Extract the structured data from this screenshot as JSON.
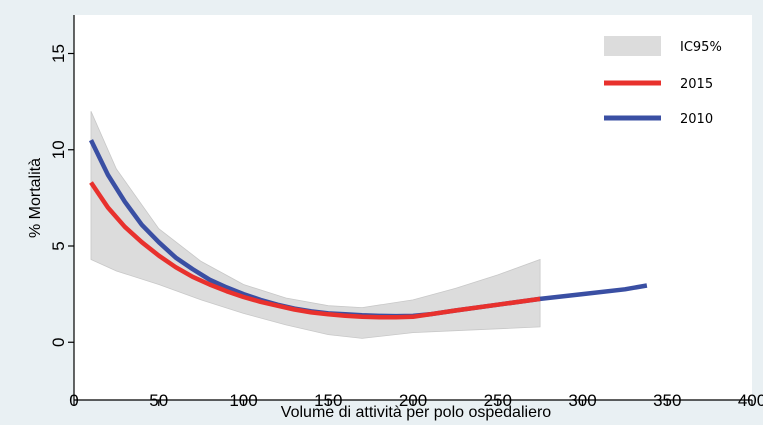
{
  "chart_data": {
    "type": "line",
    "title": "",
    "xlabel": "Volume di attività per polo ospedaliero",
    "ylabel": "% Mortalità",
    "xlim": [
      0,
      400
    ],
    "ylim": [
      -3,
      17
    ],
    "x_ticks": [
      0,
      50,
      100,
      150,
      200,
      250,
      300,
      350,
      400
    ],
    "y_ticks": [
      0,
      5,
      10,
      15
    ],
    "grid": false,
    "legend_position": "top-right",
    "band": {
      "name": "IC95%",
      "color": "#dcdcdc",
      "x": [
        10,
        25,
        50,
        75,
        100,
        125,
        150,
        170,
        200,
        225,
        250,
        275
      ],
      "lower": [
        4.3,
        3.7,
        3.0,
        2.2,
        1.5,
        0.9,
        0.4,
        0.2,
        0.5,
        0.6,
        0.7,
        0.8
      ],
      "upper": [
        12.0,
        9.0,
        5.9,
        4.2,
        3.0,
        2.3,
        1.9,
        1.8,
        2.2,
        2.8,
        3.5,
        4.3
      ]
    },
    "series": [
      {
        "name": "2015",
        "color": "#e8312d",
        "x": [
          10,
          20,
          30,
          40,
          50,
          60,
          70,
          80,
          90,
          100,
          110,
          120,
          130,
          140,
          150,
          160,
          170,
          180,
          190,
          200,
          210,
          225,
          250,
          275
        ],
        "values": [
          8.3,
          7.0,
          6.0,
          5.2,
          4.5,
          3.9,
          3.4,
          3.0,
          2.65,
          2.35,
          2.1,
          1.9,
          1.7,
          1.55,
          1.45,
          1.38,
          1.32,
          1.3,
          1.3,
          1.32,
          1.45,
          1.65,
          1.95,
          2.25
        ]
      },
      {
        "name": "2010",
        "color": "#3a4fa3",
        "x": [
          10,
          20,
          30,
          40,
          50,
          60,
          70,
          80,
          90,
          100,
          110,
          120,
          130,
          140,
          150,
          160,
          170,
          180,
          190,
          200,
          210,
          225,
          250,
          275,
          300,
          325,
          338
        ],
        "values": [
          10.5,
          8.7,
          7.3,
          6.1,
          5.2,
          4.4,
          3.8,
          3.25,
          2.85,
          2.5,
          2.2,
          1.95,
          1.75,
          1.6,
          1.5,
          1.45,
          1.4,
          1.37,
          1.36,
          1.37,
          1.45,
          1.65,
          1.95,
          2.25,
          2.5,
          2.75,
          2.95
        ]
      }
    ]
  }
}
